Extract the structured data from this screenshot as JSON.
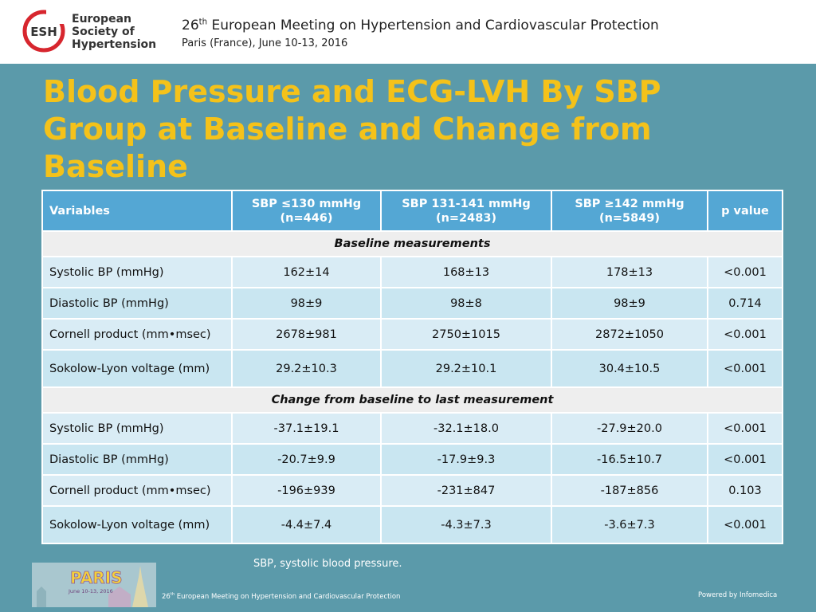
{
  "header": {
    "logo_initials": "ESH",
    "logo_lines": [
      "European",
      "Society of",
      "Hypertension"
    ],
    "meeting_number": "26",
    "meeting_suffix": "th",
    "meeting_name": " European Meeting on Hypertension and Cardiovascular Protection",
    "meeting_location": "Paris (France), June 10-13, 2016"
  },
  "title": "Blood Pressure and ECG-LVH By SBP Group at Baseline and Change from Baseline",
  "table": {
    "headers": {
      "variables": "Variables",
      "col1_line1": "SBP ≤130 mmHg",
      "col1_line2": "(n=446)",
      "col2_line1": "SBP 131-141 mmHg",
      "col2_line2": "(n=2483)",
      "col3_line1": "SBP ≥142 mmHg",
      "col3_line2": "(n=5849)",
      "pvalue": "p value"
    },
    "section_baseline": "Baseline measurements",
    "baseline_rows": [
      {
        "variable": "Systolic BP (mmHg)",
        "c1": "162±14",
        "c2": "168±13",
        "c3": "178±13",
        "p": "<0.001"
      },
      {
        "variable": "Diastolic BP (mmHg)",
        "c1": "98±9",
        "c2": "98±8",
        "c3": "98±9",
        "p": "0.714"
      },
      {
        "variable": "Cornell product (mm•msec)",
        "c1": "2678±981",
        "c2": "2750±1015",
        "c3": "2872±1050",
        "p": "<0.001"
      },
      {
        "variable": "Sokolow-Lyon voltage (mm)",
        "c1": "29.2±10.3",
        "c2": "29.2±10.1",
        "c3": "30.4±10.5",
        "p": "<0.001"
      }
    ],
    "section_change": "Change from baseline to last measurement",
    "change_rows": [
      {
        "variable": "Systolic BP (mmHg)",
        "c1": "-37.1±19.1",
        "c2": "-32.1±18.0",
        "c3": "-27.9±20.0",
        "p": "<0.001"
      },
      {
        "variable": "Diastolic BP (mmHg)",
        "c1": "-20.7±9.9",
        "c2": "-17.9±9.3",
        "c3": "-16.5±10.7",
        "p": "<0.001"
      },
      {
        "variable": "Cornell product (mm•msec)",
        "c1": "-196±939",
        "c2": "-231±847",
        "c3": "-187±856",
        "p": "0.103"
      },
      {
        "variable": "Sokolow-Lyon voltage (mm)",
        "c1": "-4.4±7.4",
        "c2": "-4.3±7.3",
        "c3": "-3.6±7.3",
        "p": "<0.001"
      }
    ]
  },
  "footnote": "SBP, systolic blood pressure.",
  "footer": {
    "paris_logo_text": "PARIS",
    "paris_logo_dates": "June 10-13, 2016",
    "meeting_number": "26",
    "meeting_suffix": "th",
    "meeting_name": " European Meeting on Hypertension and Cardiovascular Protection",
    "powered_by": "Powered by Infomedica"
  },
  "colors": {
    "background": "#5b9aaa",
    "title": "#f4c21a",
    "header_row": "#54a7d4",
    "body_row": "#d9ecf5",
    "section_row": "#eeeeee",
    "logo_red": "#d7262e"
  }
}
